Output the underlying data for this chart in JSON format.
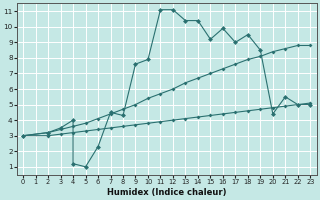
{
  "title": "",
  "xlabel": "Humidex (Indice chaleur)",
  "bg_color": "#c5e8e5",
  "grid_color": "#ffffff",
  "line_color": "#2a7070",
  "xlim": [
    -0.5,
    23.5
  ],
  "ylim": [
    0.5,
    11.5
  ],
  "xticks": [
    0,
    1,
    2,
    3,
    4,
    5,
    6,
    7,
    8,
    9,
    10,
    11,
    12,
    13,
    14,
    15,
    16,
    17,
    18,
    19,
    20,
    21,
    22,
    23
  ],
  "yticks": [
    1,
    2,
    3,
    4,
    5,
    6,
    7,
    8,
    9,
    10,
    11
  ],
  "lines": [
    {
      "x": [
        0,
        2,
        3,
        4,
        5,
        6,
        7,
        8,
        9,
        10,
        11,
        12,
        13,
        14,
        15,
        16,
        17,
        18,
        19,
        20,
        21,
        22,
        23
      ],
      "y": [
        3.0,
        3.2,
        3.4,
        3.6,
        3.8,
        4.1,
        4.4,
        4.7,
        5.0,
        5.4,
        5.7,
        6.0,
        6.4,
        6.7,
        7.0,
        7.3,
        7.6,
        7.9,
        8.1,
        8.4,
        8.6,
        8.8,
        8.8
      ],
      "marker": "D",
      "markersize": 2.0
    },
    {
      "x": [
        0,
        2,
        3,
        4,
        5,
        6,
        7,
        8,
        9,
        10,
        11,
        12,
        13,
        14,
        15,
        16,
        17,
        18,
        19,
        20,
        21,
        22,
        23
      ],
      "y": [
        3.0,
        3.0,
        3.1,
        3.2,
        3.3,
        3.4,
        3.5,
        3.6,
        3.7,
        3.8,
        3.9,
        4.0,
        4.1,
        4.2,
        4.3,
        4.4,
        4.5,
        4.6,
        4.7,
        4.8,
        4.9,
        5.0,
        5.1
      ],
      "marker": "D",
      "markersize": 2.0
    },
    {
      "x": [
        0,
        2,
        3,
        4,
        4,
        5,
        6,
        7,
        8,
        9,
        10,
        11,
        12,
        13,
        14,
        15,
        16,
        17,
        18,
        19,
        20,
        21,
        22,
        23
      ],
      "y": [
        3.0,
        3.2,
        3.5,
        4.0,
        1.2,
        1.0,
        2.3,
        4.5,
        4.3,
        7.6,
        7.9,
        11.1,
        11.1,
        10.4,
        10.4,
        9.2,
        9.9,
        9.0,
        9.5,
        8.5,
        4.4,
        5.5,
        5.0,
        5.0
      ],
      "marker": "D",
      "markersize": 2.5
    }
  ]
}
